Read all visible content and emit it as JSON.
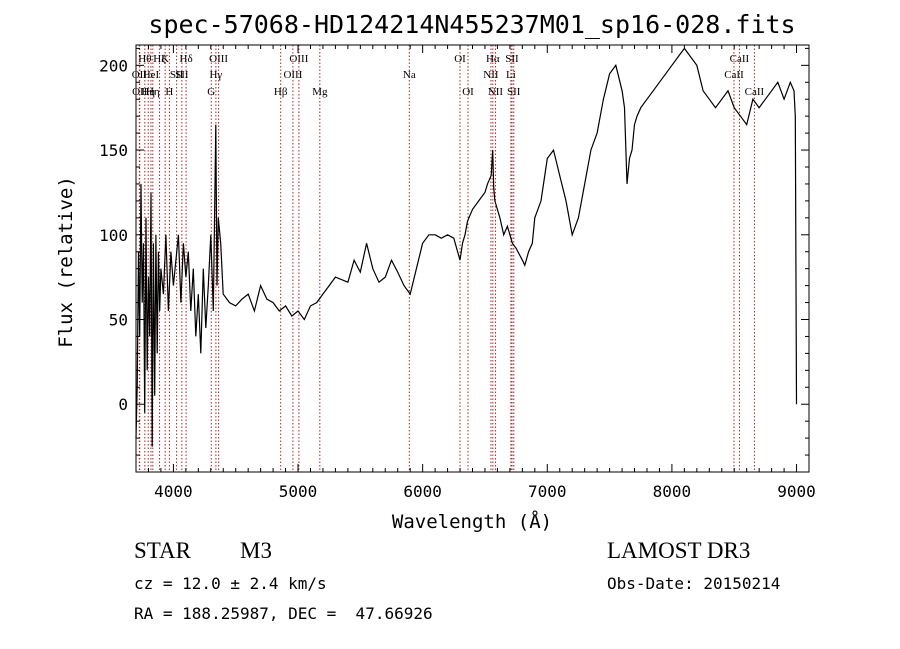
{
  "chart_data": {
    "type": "line",
    "title": "spec-57068-HD124214N455237M01_sp16-028.fits",
    "xlabel": "Wavelength (Å)",
    "ylabel": "Flux (relative)",
    "xlim": [
      3700,
      9100
    ],
    "ylim": [
      -40,
      212
    ],
    "x_ticks": [
      4000,
      5000,
      6000,
      7000,
      8000,
      9000
    ],
    "y_ticks": [
      0,
      50,
      100,
      150,
      200
    ],
    "grid": false,
    "line_color": "#000000",
    "marker_color": "#b22222",
    "series": [
      {
        "x": [
          3700,
          3710,
          3720,
          3730,
          3740,
          3750,
          3760,
          3770,
          3780,
          3790,
          3800,
          3810,
          3820,
          3830,
          3840,
          3850,
          3860,
          3870,
          3880,
          3890,
          3900,
          3920,
          3940,
          3960,
          3980,
          4000,
          4020,
          4040,
          4060,
          4080,
          4100,
          4120,
          4140,
          4160,
          4180,
          4200,
          4220,
          4240,
          4260,
          4280,
          4300,
          4320,
          4340,
          4350,
          4360,
          4380,
          4400,
          4450,
          4500,
          4550,
          4600,
          4650,
          4700,
          4750,
          4800,
          4850,
          4900,
          4950,
          5000,
          5050,
          5100,
          5150,
          5200,
          5250,
          5300,
          5400,
          5450,
          5500,
          5550,
          5600,
          5650,
          5700,
          5750,
          5800,
          5850,
          5900,
          5950,
          6000,
          6050,
          6100,
          6150,
          6200,
          6250,
          6300,
          6320,
          6340,
          6360,
          6400,
          6450,
          6500,
          6520,
          6550,
          6562,
          6570,
          6580,
          6600,
          6620,
          6650,
          6680,
          6700,
          6720,
          6750,
          6800,
          6820,
          6850,
          6880,
          6900,
          6950,
          7000,
          7050,
          7100,
          7150,
          7200,
          7250,
          7300,
          7350,
          7400,
          7450,
          7500,
          7550,
          7600,
          7620,
          7640,
          7660,
          7680,
          7700,
          7720,
          7750,
          7800,
          7850,
          7900,
          7950,
          8000,
          8050,
          8100,
          8150,
          8200,
          8250,
          8300,
          8350,
          8400,
          8450,
          8500,
          8550,
          8600,
          8650,
          8700,
          8750,
          8800,
          8850,
          8900,
          8950,
          8980,
          8990,
          9000
        ],
        "y": [
          -20,
          10,
          90,
          40,
          130,
          60,
          95,
          -5,
          110,
          20,
          75,
          40,
          125,
          -25,
          95,
          5,
          100,
          30,
          90,
          55,
          80,
          65,
          100,
          55,
          90,
          70,
          85,
          100,
          60,
          95,
          75,
          90,
          55,
          80,
          40,
          65,
          30,
          80,
          45,
          70,
          100,
          55,
          165,
          70,
          110,
          95,
          65,
          60,
          58,
          62,
          65,
          55,
          70,
          62,
          60,
          55,
          58,
          52,
          55,
          50,
          58,
          60,
          65,
          70,
          75,
          72,
          85,
          78,
          95,
          80,
          72,
          75,
          85,
          78,
          70,
          65,
          80,
          95,
          100,
          100,
          98,
          100,
          98,
          85,
          95,
          100,
          108,
          115,
          120,
          125,
          130,
          135,
          150,
          128,
          120,
          115,
          110,
          100,
          105,
          100,
          95,
          92,
          85,
          82,
          90,
          95,
          110,
          120,
          145,
          150,
          135,
          120,
          100,
          110,
          130,
          150,
          160,
          180,
          195,
          200,
          185,
          175,
          130,
          145,
          150,
          165,
          170,
          175,
          180,
          185,
          190,
          195,
          200,
          205,
          210,
          205,
          200,
          185,
          180,
          175,
          180,
          185,
          175,
          170,
          165,
          180,
          175,
          180,
          185,
          190,
          180,
          190,
          185,
          170,
          0
        ]
      }
    ],
    "lines": [
      {
        "wl": 3727,
        "label": "OII",
        "row": 2
      },
      {
        "wl": 3730,
        "label": "OII",
        "row": 3
      },
      {
        "wl": 3771,
        "label": "Hθ",
        "row": 1
      },
      {
        "wl": 3798,
        "label": "Hη",
        "row": 3
      },
      {
        "wl": 3820,
        "label": "HeI",
        "row": 2
      },
      {
        "wl": 3835,
        "label": "Hη",
        "row": 3
      },
      {
        "wl": 3889,
        "label": "Hζ",
        "row": 1
      },
      {
        "wl": 3934,
        "label": "K",
        "row": 1
      },
      {
        "wl": 3968,
        "label": "H",
        "row": 3
      },
      {
        "wl": 4026,
        "label": "SII",
        "row": 2
      },
      {
        "wl": 4102,
        "label": "Hδ",
        "row": 1
      },
      {
        "wl": 4068,
        "label": "SII",
        "row": 2
      },
      {
        "wl": 4304,
        "label": "G",
        "row": 3
      },
      {
        "wl": 4341,
        "label": "Hγ",
        "row": 2
      },
      {
        "wl": 4363,
        "label": "OIII",
        "row": 1
      },
      {
        "wl": 4861,
        "label": "Hβ",
        "row": 3
      },
      {
        "wl": 4959,
        "label": "OIII",
        "row": 2
      },
      {
        "wl": 5007,
        "label": "OIII",
        "row": 1
      },
      {
        "wl": 5175,
        "label": "Mg",
        "row": 3
      },
      {
        "wl": 5893,
        "label": "Na",
        "row": 2
      },
      {
        "wl": 6300,
        "label": "OI",
        "row": 1
      },
      {
        "wl": 6364,
        "label": "OI",
        "row": 3
      },
      {
        "wl": 6548,
        "label": "NII",
        "row": 2
      },
      {
        "wl": 6563,
        "label": "Hα",
        "row": 1
      },
      {
        "wl": 6584,
        "label": "NII",
        "row": 3
      },
      {
        "wl": 6708,
        "label": "Li",
        "row": 2
      },
      {
        "wl": 6717,
        "label": "SII",
        "row": 1
      },
      {
        "wl": 6731,
        "label": "SII",
        "row": 3
      },
      {
        "wl": 8498,
        "label": "CaII",
        "row": 2
      },
      {
        "wl": 8542,
        "label": "CaII",
        "row": 1
      },
      {
        "wl": 8662,
        "label": "CaII",
        "row": 3
      }
    ]
  },
  "info": {
    "object_type": "STAR",
    "subclass": "M3",
    "redshift": "cz = 12.0 ± 2.4 km/s",
    "coords": "RA = 188.25987, DEC =  47.66926",
    "survey": "LAMOST DR3",
    "obs_date": "Obs-Date: 20150214"
  }
}
